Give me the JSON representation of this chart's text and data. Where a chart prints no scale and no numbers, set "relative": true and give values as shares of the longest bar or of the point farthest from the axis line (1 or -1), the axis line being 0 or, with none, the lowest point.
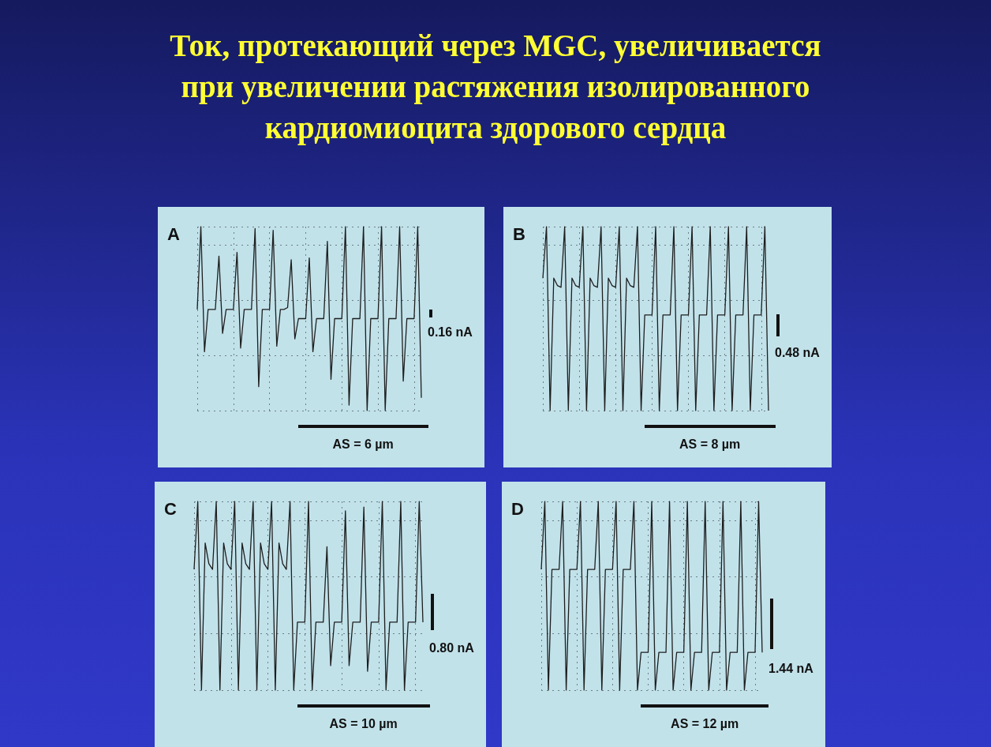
{
  "chart_data": [
    {
      "type": "line",
      "title": "Ток, протекающий через MGC, увеличивается при увеличении растяжения изолированного кардиомиоцита здорового сердца",
      "relative": true,
      "grid": true,
      "annotations": [
        "A",
        "0.16 nA",
        "AS = 6 µm"
      ],
      "categories": [
        null,
        null,
        null,
        null,
        null,
        null,
        null,
        null,
        null,
        null,
        null,
        null,
        null,
        null,
        null,
        null,
        null,
        null,
        null,
        null,
        null,
        null,
        null,
        null,
        null,
        null,
        null,
        null,
        null,
        null,
        null,
        null,
        null,
        null,
        null,
        null,
        null,
        null,
        null,
        null,
        null,
        null,
        null,
        null,
        null,
        null,
        null,
        null,
        null,
        null,
        null,
        null,
        null,
        null,
        null,
        null,
        null,
        null,
        null,
        null,
        null,
        null,
        null
      ],
      "series": [
        {
          "color": "#1e1e1e",
          "values": [
            0.55,
            1,
            0.32,
            0.55,
            0.55,
            0.55,
            0.84,
            0.42,
            0.55,
            0.55,
            0.55,
            0.86,
            0.34,
            0.55,
            0.55,
            0.55,
            0.99,
            0.13,
            0.55,
            0.55,
            0.55,
            0.98,
            0.35,
            0.55,
            0.55,
            0.56,
            0.82,
            0.39,
            0.5,
            0.5,
            0.5,
            0.83,
            0.32,
            0.5,
            0.5,
            0.5,
            0.92,
            0.17,
            0.5,
            0.5,
            0.5,
            1,
            0.03,
            0.5,
            0.5,
            0.5,
            1,
            0,
            0.5,
            0.5,
            0.5,
            1,
            0,
            0.5,
            0.5,
            0.5,
            1,
            0.16,
            0.5,
            0.5,
            0.5,
            1,
            0.07
          ]
        }
      ]
    },
    {
      "type": "line",
      "relative": true,
      "grid": true,
      "annotations": [
        "B",
        "0.48 nA",
        "AS = 8 µm"
      ],
      "categories": [
        null,
        null,
        null,
        null,
        null,
        null,
        null,
        null,
        null,
        null,
        null,
        null,
        null,
        null,
        null,
        null,
        null,
        null,
        null,
        null,
        null,
        null,
        null,
        null,
        null,
        null,
        null,
        null,
        null,
        null,
        null,
        null,
        null,
        null,
        null,
        null,
        null,
        null,
        null,
        null,
        null,
        null,
        null,
        null,
        null,
        null,
        null,
        null,
        null,
        null,
        null,
        null,
        null,
        null,
        null,
        null,
        null,
        null,
        null,
        null,
        null,
        null,
        null
      ],
      "series": [
        {
          "color": "#1e1e1e",
          "values": [
            0.72,
            1,
            0,
            0.72,
            0.68,
            0.67,
            1,
            0,
            0.72,
            0.68,
            0.67,
            1,
            0,
            0.72,
            0.68,
            0.67,
            1,
            0,
            0.72,
            0.68,
            0.67,
            1,
            0,
            0.72,
            0.68,
            0.67,
            1,
            0,
            0.52,
            0.52,
            0.52,
            1,
            0,
            0.52,
            0.52,
            0.52,
            1,
            0,
            0.52,
            0.52,
            0.52,
            1,
            0,
            0.52,
            0.52,
            0.52,
            1,
            0,
            0.52,
            0.52,
            0.52,
            1,
            0,
            0.52,
            0.52,
            0.52,
            1,
            0,
            0.52,
            0.52,
            0.52,
            1,
            0
          ]
        }
      ]
    },
    {
      "type": "line",
      "relative": true,
      "grid": true,
      "annotations": [
        "C",
        "0.80 nA",
        "AS = 10 µm"
      ],
      "categories": [
        null,
        null,
        null,
        null,
        null,
        null,
        null,
        null,
        null,
        null,
        null,
        null,
        null,
        null,
        null,
        null,
        null,
        null,
        null,
        null,
        null,
        null,
        null,
        null,
        null,
        null,
        null,
        null,
        null,
        null,
        null,
        null,
        null,
        null,
        null,
        null,
        null,
        null,
        null,
        null,
        null,
        null,
        null,
        null,
        null,
        null,
        null,
        null,
        null,
        null,
        null,
        null,
        null,
        null,
        null,
        null,
        null,
        null,
        null,
        null,
        null,
        null,
        null
      ],
      "series": [
        {
          "color": "#1e1e1e",
          "values": [
            0.64,
            1,
            0,
            0.78,
            0.67,
            0.64,
            1,
            0,
            0.78,
            0.67,
            0.64,
            1,
            0,
            0.78,
            0.67,
            0.64,
            1,
            0,
            0.78,
            0.67,
            0.64,
            1,
            0,
            0.78,
            0.67,
            0.64,
            1,
            0,
            0.36,
            0.36,
            0.36,
            1,
            0,
            0.36,
            0.36,
            0.36,
            0.76,
            0.13,
            0.36,
            0.36,
            0.36,
            0.95,
            0.13,
            0.36,
            0.36,
            0.36,
            0.97,
            0.1,
            0.36,
            0.36,
            0.36,
            1,
            0,
            0.36,
            0.36,
            0.36,
            1,
            0,
            0.36,
            0.36,
            0.36,
            1,
            0.36
          ]
        }
      ]
    },
    {
      "type": "line",
      "relative": true,
      "grid": true,
      "annotations": [
        "D",
        "1.44 nA",
        "AS = 12 µm"
      ],
      "categories": [
        null,
        null,
        null,
        null,
        null,
        null,
        null,
        null,
        null,
        null,
        null,
        null,
        null,
        null,
        null,
        null,
        null,
        null,
        null,
        null,
        null,
        null,
        null,
        null,
        null,
        null,
        null,
        null,
        null,
        null,
        null,
        null,
        null,
        null,
        null,
        null,
        null,
        null,
        null,
        null,
        null,
        null,
        null,
        null,
        null,
        null,
        null,
        null,
        null,
        null,
        null,
        null,
        null,
        null,
        null,
        null,
        null,
        null,
        null,
        null,
        null,
        null,
        null
      ],
      "series": [
        {
          "color": "#1e1e1e",
          "values": [
            0.64,
            1,
            0,
            0.64,
            0.64,
            0.64,
            1,
            0,
            0.64,
            0.64,
            0.64,
            1,
            0,
            0.64,
            0.64,
            0.64,
            1,
            0,
            0.64,
            0.64,
            0.64,
            1,
            0,
            0.64,
            0.64,
            0.64,
            1,
            0,
            0.2,
            0.2,
            0.2,
            1,
            0,
            0.2,
            0.2,
            0.2,
            1,
            0,
            0.2,
            0.2,
            0.2,
            1,
            0,
            0.2,
            0.2,
            0.2,
            1,
            0,
            0.2,
            0.2,
            0.2,
            1,
            0,
            0.2,
            0.2,
            0.2,
            1,
            0,
            0.2,
            0.2,
            0.2,
            1,
            0.2
          ]
        }
      ]
    }
  ]
}
